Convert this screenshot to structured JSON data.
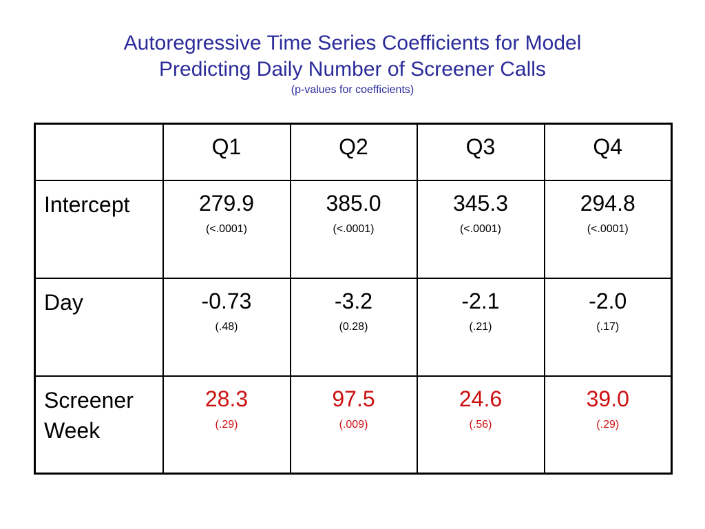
{
  "title": {
    "line1": "Autoregressive Time Series Coefficients for Model",
    "line2": "Predicting Daily Number of Screener Calls",
    "subtitle": "(p-values for coefficients)"
  },
  "table": {
    "headers": [
      "",
      "Q1",
      "Q2",
      "Q3",
      "Q4"
    ],
    "rows": [
      {
        "label": "Intercept",
        "cells": [
          {
            "value": "279.9",
            "p": "(<.0001)"
          },
          {
            "value": "385.0",
            "p": "(<.0001)"
          },
          {
            "value": "345.3",
            "p": "(<.0001)"
          },
          {
            "value": "294.8",
            "p": "(<.0001)"
          }
        ]
      },
      {
        "label": "Day",
        "cells": [
          {
            "value": "-0.73",
            "p": "(.48)"
          },
          {
            "value": "-3.2",
            "p": "(0.28)"
          },
          {
            "value": "-2.1",
            "p": "(.21)"
          },
          {
            "value": "-2.0",
            "p": "(.17)"
          }
        ]
      },
      {
        "label_line1": "Screener",
        "label_line2": "Week",
        "cells": [
          {
            "value": "28.3",
            "p": "(.29)"
          },
          {
            "value": "97.5",
            "p": "(.009)"
          },
          {
            "value": "24.6",
            "p": "(.56)"
          },
          {
            "value": "39.0",
            "p": "(.29)"
          }
        ]
      }
    ]
  },
  "colors": {
    "title": "#2b2b9a",
    "highlight": "#cc1010"
  }
}
